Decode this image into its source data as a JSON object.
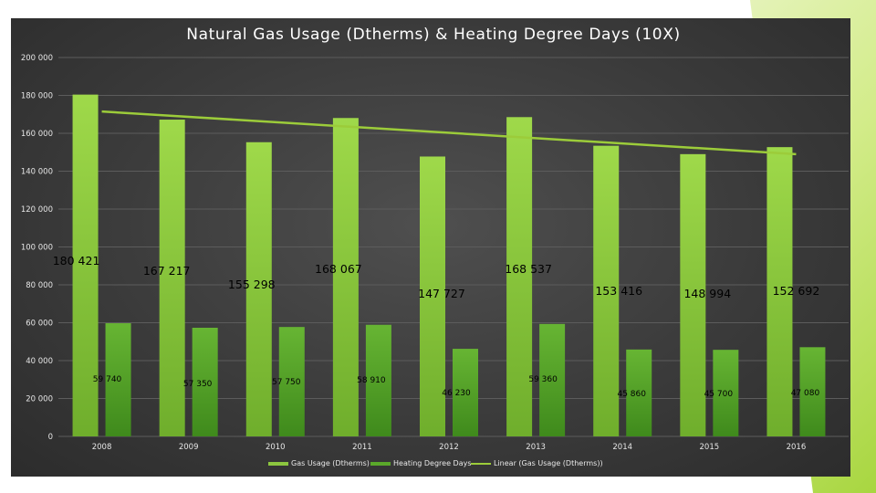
{
  "chart_data": {
    "type": "bar",
    "title": "Natural Gas Usage (Dtherms) & Heating Degree Days (10X)",
    "categories": [
      "2008",
      "2009",
      "2010",
      "2011",
      "2012",
      "2013",
      "2014",
      "2015",
      "2016"
    ],
    "series": [
      {
        "name": "Gas Usage (Dtherms)",
        "values": [
          180421,
          167217,
          155298,
          168067,
          147727,
          168537,
          153416,
          148994,
          152692
        ],
        "labels": [
          "180 421",
          "167 217",
          "155 298",
          "168 067",
          "147 727",
          "168 537",
          "153 416",
          "148 994",
          "152 692"
        ],
        "color": "#8cc63f"
      },
      {
        "name": "Heating Degree Days",
        "values": [
          59740,
          57350,
          57750,
          58910,
          46230,
          59360,
          45860,
          45700,
          47080
        ],
        "labels": [
          "59 740",
          "57 350",
          "57 750",
          "58 910",
          "46 230",
          "59 360",
          "45 860",
          "45 700",
          "47 080"
        ],
        "color": "#5aa82a"
      }
    ],
    "trendline": {
      "name": "Linear (Gas Usage (Dtherms))",
      "start": 171500,
      "end": 149000,
      "color": "#9ccc3a"
    },
    "ylim": [
      0,
      200000
    ],
    "yticks": [
      0,
      20000,
      40000,
      60000,
      80000,
      100000,
      120000,
      140000,
      160000,
      180000,
      200000
    ],
    "ytick_labels": [
      "0",
      "20 000",
      "40 000",
      "60 000",
      "80 000",
      "100 000",
      "120 000",
      "140 000",
      "160 000",
      "180 000",
      "200 000"
    ],
    "grid": true,
    "legend": "bottom"
  }
}
